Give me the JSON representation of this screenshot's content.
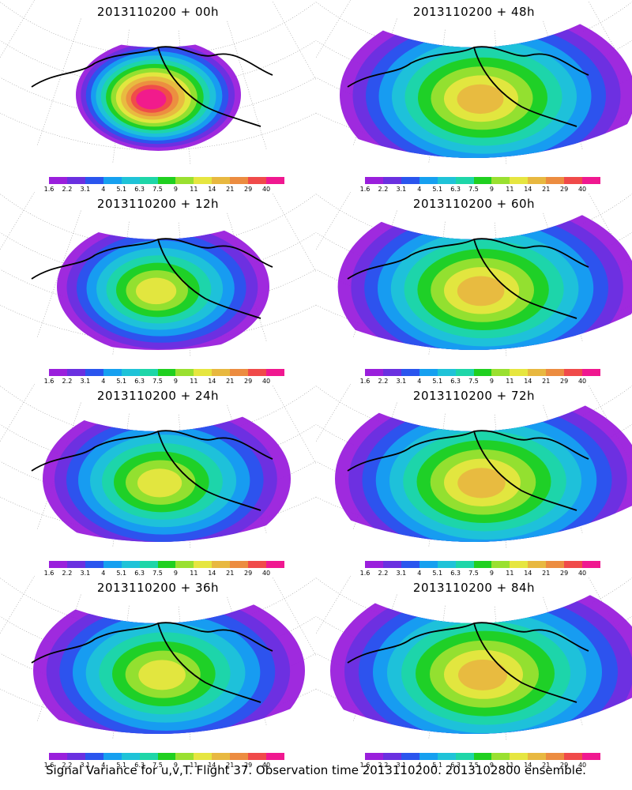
{
  "panels": [
    {
      "title": "2013110200 + 00h",
      "lead": "00h",
      "max_level": 12,
      "spread": 0.35
    },
    {
      "title": "2013110200 + 12h",
      "lead": "12h",
      "max_level": 8,
      "spread": 0.55
    },
    {
      "title": "2013110200 + 24h",
      "lead": "24h",
      "max_level": 8,
      "spread": 0.7
    },
    {
      "title": "2013110200 + 36h",
      "lead": "36h",
      "max_level": 8,
      "spread": 0.8
    },
    {
      "title": "2013110200 + 48h",
      "lead": "48h",
      "max_level": 9,
      "spread": 0.9
    },
    {
      "title": "2013110200 + 60h",
      "lead": "60h",
      "max_level": 9,
      "spread": 0.92
    },
    {
      "title": "2013110200 + 72h",
      "lead": "72h",
      "max_level": 9,
      "spread": 0.95
    },
    {
      "title": "2013110200 + 84h",
      "lead": "84h",
      "max_level": 9,
      "spread": 1.0
    }
  ],
  "color_scale": {
    "labels": [
      "1.6",
      "2.2",
      "3.1",
      "4",
      "5.1",
      "6.3",
      "7.5",
      "9",
      "11",
      "14",
      "21",
      "29",
      "40"
    ],
    "colors": [
      "#9a1fdc",
      "#6a30e0",
      "#2a55ee",
      "#16a0f0",
      "#1fc3d8",
      "#1ed6a8",
      "#20d020",
      "#9ae030",
      "#e6e640",
      "#e8b840",
      "#ec8c40",
      "#f04a4a",
      "#f01890"
    ]
  },
  "caption": "Signal Variance for u,v,T. Flight 37. Observation time 2013110200. 2013102800 ensemble."
}
